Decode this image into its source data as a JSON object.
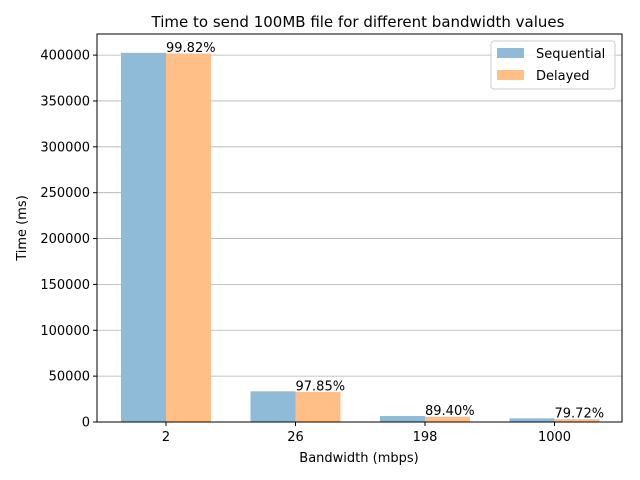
{
  "chart_data": {
    "type": "bar",
    "title": "Time to send 100MB file for different bandwidth values",
    "xlabel": "Bandwidth (mbps)",
    "ylabel": "Time (ms)",
    "categories": [
      "2",
      "26",
      "198",
      "1000"
    ],
    "series": [
      {
        "name": "Sequential",
        "values": [
          402500,
          33500,
          6500,
          4000
        ],
        "color": "#8fbbd9"
      },
      {
        "name": "Delayed",
        "values": [
          401800,
          32800,
          5800,
          3200
        ],
        "color": "#ffbf86"
      }
    ],
    "data_labels": [
      "99.82%",
      "97.85%",
      "89.40%",
      "79.72%"
    ],
    "ylim": [
      0,
      423000
    ],
    "yticks": [
      0,
      50000,
      100000,
      150000,
      200000,
      250000,
      300000,
      350000,
      400000
    ],
    "grid": "horizontal",
    "legend_position": "top-right"
  }
}
